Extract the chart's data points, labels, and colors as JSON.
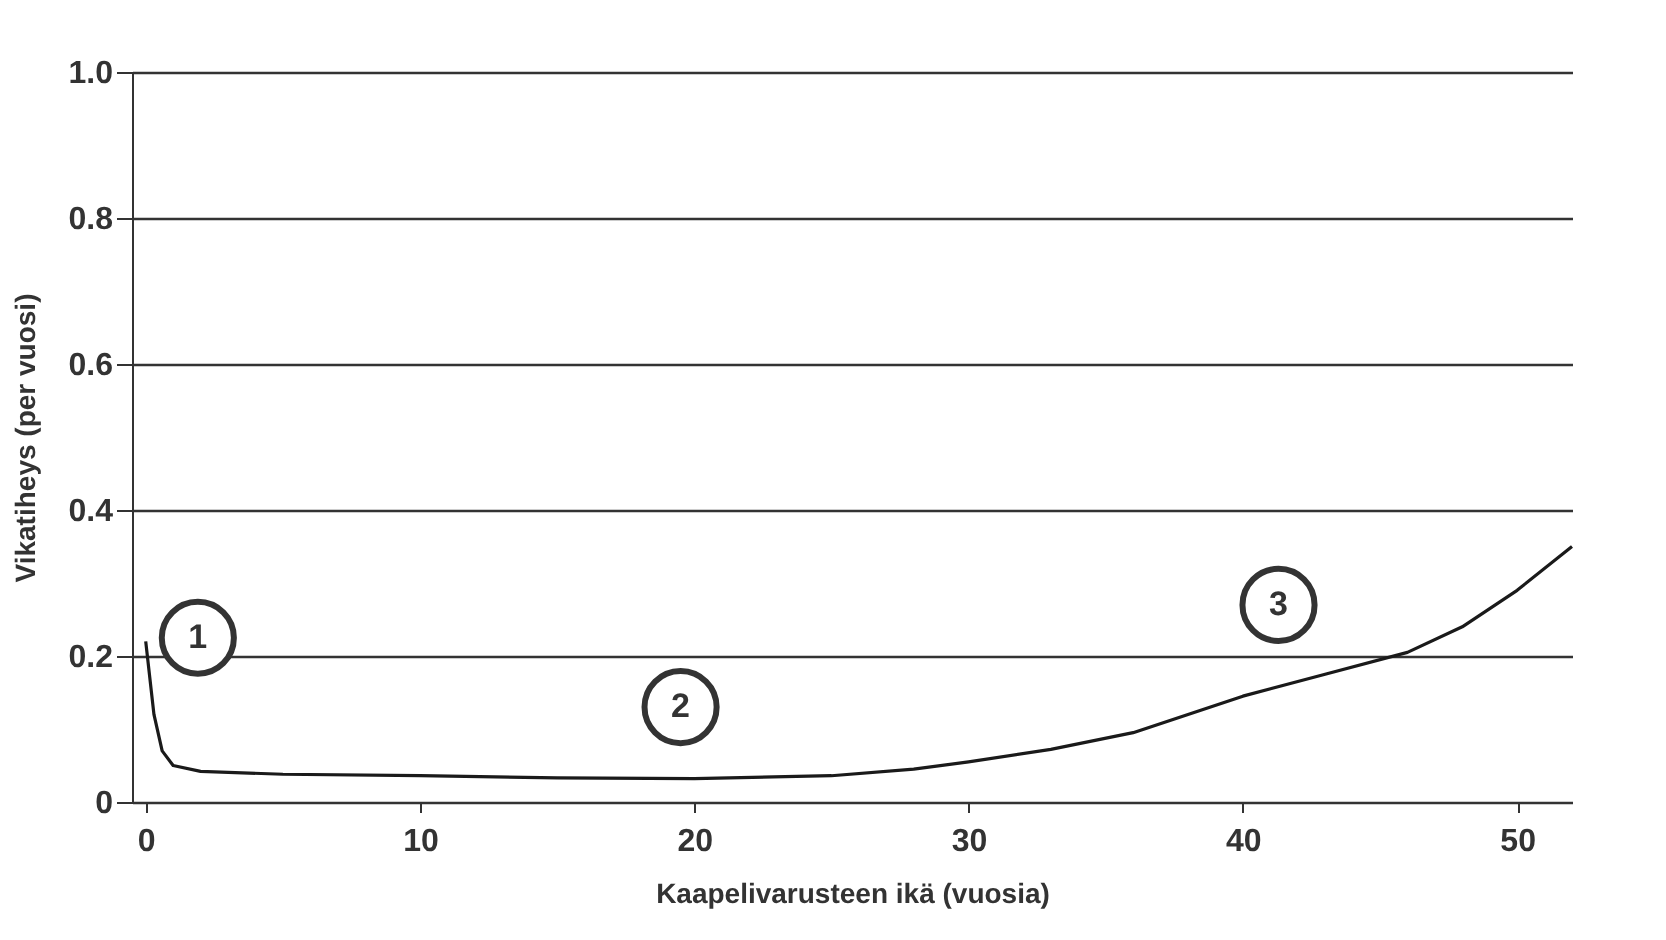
{
  "chart_data": {
    "type": "line",
    "xlabel": "Kaapelivarusteen ikä (vuosia)",
    "ylabel": "Vikatiheys (per vuosi)",
    "x": [
      0,
      0.3,
      0.6,
      1,
      2,
      5,
      10,
      15,
      20,
      25,
      28,
      30,
      33,
      36,
      40,
      43,
      46,
      48,
      50,
      52
    ],
    "series": [
      {
        "color": "#1a1a1a",
        "values": [
          0.22,
          0.12,
          0.07,
          0.05,
          0.042,
          0.038,
          0.036,
          0.033,
          0.032,
          0.036,
          0.045,
          0.055,
          0.072,
          0.095,
          0.145,
          0.175,
          0.205,
          0.24,
          0.29,
          0.35
        ]
      }
    ],
    "xlim": [
      -0.5,
      52
    ],
    "xticks": [
      0,
      10,
      20,
      30,
      40,
      50
    ],
    "ylim": [
      0,
      1.0
    ],
    "yticks": [
      0,
      {
        "value": 0.2,
        "label": "0.2"
      },
      {
        "value": 0.4,
        "label": "0.4"
      },
      {
        "value": 0.6,
        "label": "0.6"
      },
      {
        "value": 0.8,
        "label": "0.8"
      },
      {
        "value": 1.0,
        "label": "1.0"
      }
    ],
    "grid": "y",
    "marker": "none",
    "line_style": "solid",
    "annotations": [
      {
        "text": "1",
        "x": 1.9,
        "y": 0.225
      },
      {
        "text": "2",
        "x": 19.5,
        "y": 0.13
      },
      {
        "text": "3",
        "x": 41.3,
        "y": 0.27
      }
    ]
  }
}
